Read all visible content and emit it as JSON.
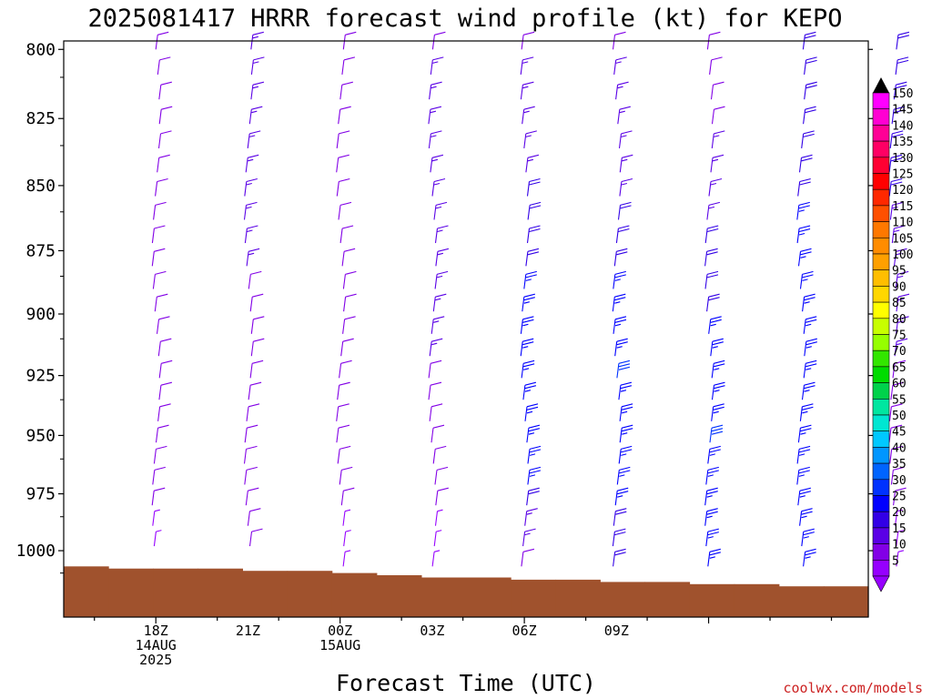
{
  "chart_data": {
    "type": "wind_barbs",
    "title": "2025081417 HRRR forecast wind profile (kt) for KEPO",
    "xlabel": "Forecast Time (UTC)",
    "ylabel": "",
    "credit": "coolwx.com/models",
    "y_axis": {
      "scale": "log-pressure",
      "range_hpa": [
        1030,
        797
      ],
      "ticks": [
        800,
        825,
        850,
        875,
        900,
        925,
        950,
        975,
        1000
      ]
    },
    "x_axis": {
      "range_hours": [
        -1.5,
        11.6
      ],
      "ticks": [
        {
          "hour": 0,
          "lines": [
            "18Z",
            "14AUG",
            "2025"
          ]
        },
        {
          "hour": 3,
          "lines": [
            "21Z"
          ]
        },
        {
          "hour": 6,
          "lines": [
            "00Z",
            "15AUG"
          ]
        },
        {
          "hour": 9,
          "lines": [
            "03Z"
          ]
        },
        {
          "hour": 12,
          "lines": [
            "06Z"
          ]
        },
        {
          "hour": 15,
          "lines": [
            "09Z"
          ]
        }
      ]
    },
    "colorbar": {
      "unit": "kt",
      "labels": [
        150,
        145,
        140,
        135,
        130,
        125,
        120,
        115,
        110,
        105,
        100,
        95,
        90,
        85,
        80,
        75,
        70,
        65,
        60,
        55,
        50,
        45,
        40,
        35,
        30,
        25,
        20,
        15,
        10,
        5
      ],
      "colors": [
        "#ff00ff",
        "#ff00d2",
        "#ff0096",
        "#ff0064",
        "#ff0032",
        "#ff0000",
        "#ff2800",
        "#ff5000",
        "#ff7800",
        "#ff8c00",
        "#ffa000",
        "#ffbe00",
        "#ffd700",
        "#ffff00",
        "#c8ff00",
        "#96ff00",
        "#32e600",
        "#00dc00",
        "#00d24b",
        "#00e6a0",
        "#00e6d2",
        "#00c8ff",
        "#0096ff",
        "#0064ff",
        "#0032ff",
        "#0000ff",
        "#3200e6",
        "#5a00e6",
        "#8200e6",
        "#9600ff"
      ],
      "top_arrow_color": "#000000",
      "bottom_arrow_color": "#9600ff"
    },
    "surface_pressure_hpa": [
      1007,
      1008,
      1008,
      1008,
      1009,
      1009,
      1010,
      1011,
      1012,
      1012,
      1013,
      1013,
      1014,
      1014,
      1015,
      1015,
      1016,
      1016
    ],
    "series": [
      {
        "hour": 0,
        "speed": [
          14,
          14,
          13,
          12,
          12,
          11,
          10,
          10,
          8
        ]
      },
      {
        "hour": 3,
        "speed": [
          18,
          17,
          16,
          15,
          14,
          13,
          12,
          11,
          10
        ]
      },
      {
        "hour": 6,
        "speed": [
          14,
          14,
          13,
          12,
          12,
          11,
          10,
          10,
          8
        ]
      },
      {
        "hour": 9,
        "speed": [
          14,
          16,
          17,
          18,
          16,
          14,
          12,
          10,
          8
        ]
      },
      {
        "hour": 12,
        "speed": [
          14,
          17,
          20,
          24,
          26,
          27,
          26,
          25,
          14
        ]
      },
      {
        "hour": 15,
        "speed": [
          14,
          16,
          19,
          22,
          28,
          30,
          28,
          27,
          22
        ]
      },
      {
        "hour": 18,
        "speed": [
          10,
          14,
          17,
          20,
          24,
          27,
          30,
          28,
          27
        ]
      },
      {
        "hour": 21,
        "speed": [
          20,
          22,
          24,
          26,
          27,
          28,
          29,
          29,
          28
        ]
      },
      {
        "hour": 24,
        "speed": [
          22,
          21,
          20,
          18,
          16,
          14,
          12,
          10,
          8
        ]
      }
    ]
  }
}
